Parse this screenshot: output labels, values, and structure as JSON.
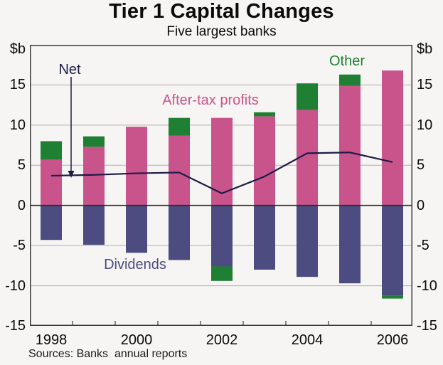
{
  "page": {
    "title": "Tier 1 Capital Changes",
    "subtitle": "Five largest banks",
    "unit_left": "$b",
    "unit_right": "$b",
    "source_note": "Sources: Banks  annual reports"
  },
  "chart_data": {
    "type": "bar",
    "stacked": true,
    "title": "Tier 1 Capital Changes",
    "subtitle": "Five largest banks",
    "ylabel_left": "$b",
    "ylabel_right": "$b",
    "categories": [
      "1998",
      "1999",
      "2000",
      "2001",
      "2002",
      "2003",
      "2004",
      "2005",
      "2006"
    ],
    "series": [
      {
        "name": "After-tax profits",
        "color": "#c9548c",
        "values": [
          5.7,
          7.3,
          9.8,
          8.7,
          10.9,
          11.1,
          11.9,
          14.9,
          16.8
        ]
      },
      {
        "name": "Other",
        "color": "#1f7f33",
        "values": [
          2.3,
          1.3,
          0.0,
          2.2,
          -1.8,
          0.5,
          3.3,
          1.4,
          -0.4
        ]
      },
      {
        "name": "Dividends",
        "color": "#4c4c80",
        "values": [
          -4.3,
          -4.9,
          -5.9,
          -6.8,
          -7.6,
          -8.0,
          -8.9,
          -9.7,
          -11.2
        ]
      }
    ],
    "line_series": {
      "name": "Net",
      "color": "#1b1b45",
      "values": [
        3.7,
        3.8,
        4.0,
        4.1,
        1.5,
        3.6,
        6.5,
        6.6,
        5.4
      ]
    },
    "ylim": [
      -15,
      20
    ],
    "yticks": [
      15,
      10,
      5,
      0,
      -5,
      -10,
      -15
    ],
    "xtick_labels": [
      "1998",
      "2000",
      "2002",
      "2004",
      "2006"
    ],
    "grid": true,
    "legend_position": "inline-annotations",
    "colors": {
      "background": "#f6f5f3",
      "grid": "#b0afae",
      "zero_line": "#2a2a2a",
      "frame": "#3a3a3a"
    }
  }
}
